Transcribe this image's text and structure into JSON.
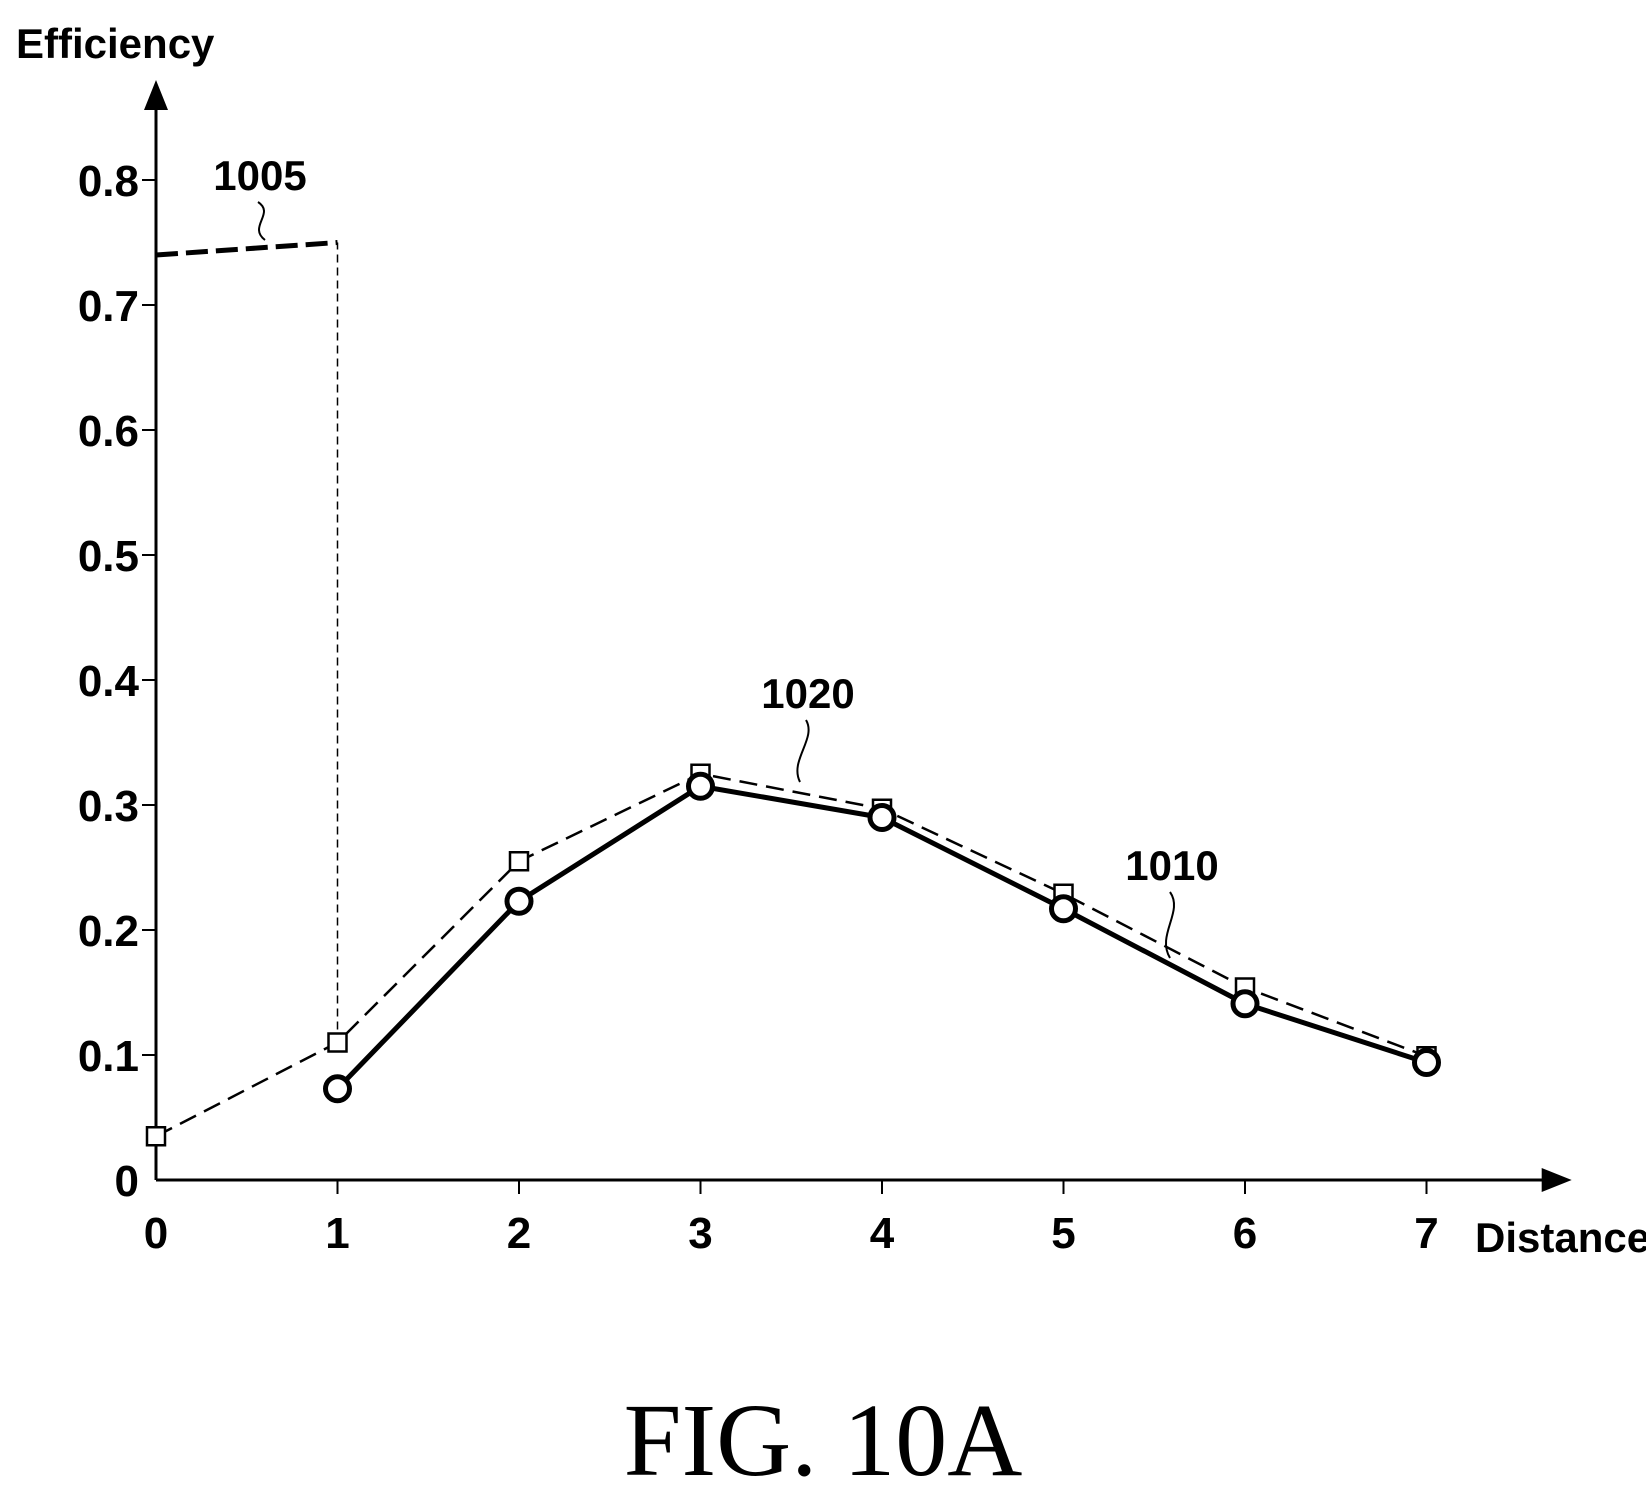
{
  "figure_caption": "FIG. 10A",
  "chart_data": {
    "type": "line",
    "xlabel": "Distance",
    "ylabel": "Efficiency",
    "x_ticks": [
      "0",
      "1",
      "2",
      "3",
      "4",
      "5",
      "6",
      "7"
    ],
    "y_ticks": [
      "0",
      "0.1",
      "0.2",
      "0.3",
      "0.4",
      "0.5",
      "0.6",
      "0.7",
      "0.8"
    ],
    "xlim": [
      0,
      7.8
    ],
    "ylim": [
      0,
      0.88
    ],
    "grid": false,
    "series": [
      {
        "ref": "1005",
        "style": "thick-dashed",
        "x": [
          0,
          1
        ],
        "y": [
          0.74,
          0.75
        ]
      },
      {
        "ref": "1020",
        "style": "dashed-squares",
        "x": [
          0,
          1,
          2,
          3,
          4,
          5,
          6,
          7
        ],
        "y": [
          0.035,
          0.11,
          0.255,
          0.325,
          0.297,
          0.229,
          0.154,
          0.099
        ]
      },
      {
        "ref": "1010",
        "style": "solid-circles",
        "x": [
          1,
          2,
          3,
          4,
          5,
          6,
          7
        ],
        "y": [
          0.073,
          0.223,
          0.315,
          0.29,
          0.217,
          0.141,
          0.094
        ]
      }
    ],
    "annotations": [
      {
        "text": "1005",
        "target_series": "1005"
      },
      {
        "text": "1020",
        "target_series": "1020"
      },
      {
        "text": "1010",
        "target_series": "1010"
      }
    ],
    "reference_line": {
      "style": "thin-dashed-vertical",
      "x": 1,
      "y_from": 0.11,
      "y_to": 0.75
    }
  }
}
